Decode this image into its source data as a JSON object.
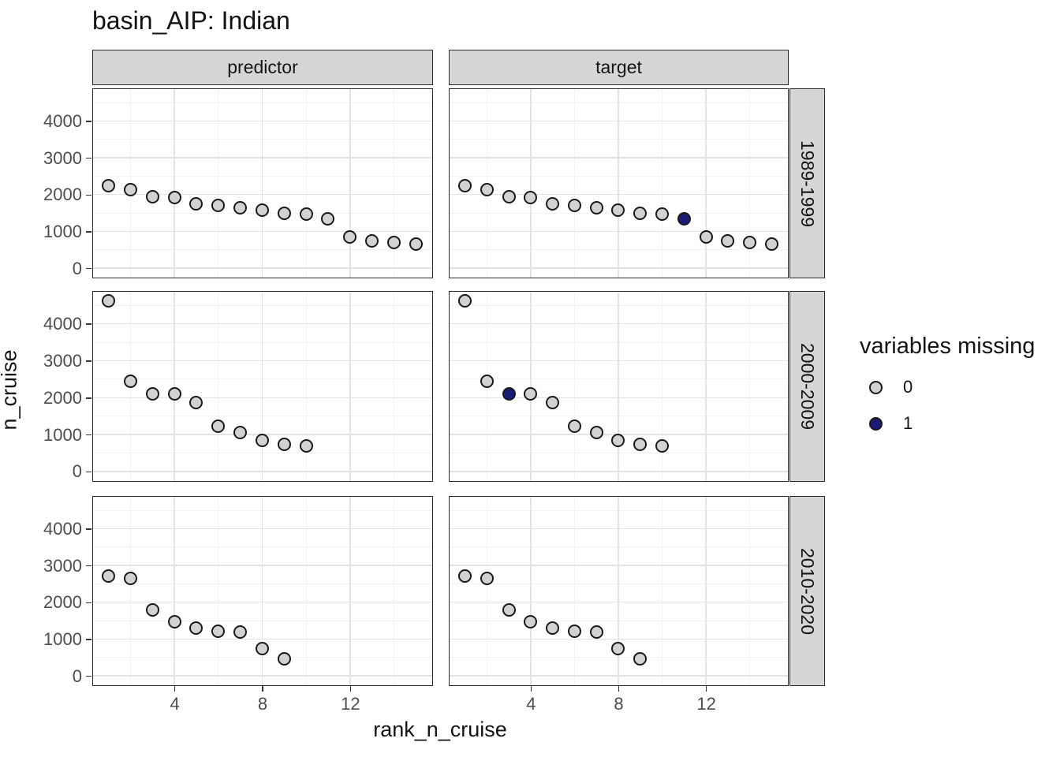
{
  "title": "basin_AIP: Indian",
  "chart_data": {
    "type": "scatter",
    "title": "basin_AIP: Indian",
    "xlabel": "rank_n_cruise",
    "ylabel": "n_cruise",
    "facet_cols": [
      "predictor",
      "target"
    ],
    "facet_rows": [
      "1989-1999",
      "2000-2009",
      "2010-2020"
    ],
    "x_ticks": [
      4,
      8,
      12
    ],
    "y_ticks": [
      4000,
      3000,
      2000,
      1000,
      0
    ],
    "x_minor": [
      2,
      6,
      10,
      14
    ],
    "y_minor": [
      500,
      1500,
      2500,
      3500,
      4500
    ],
    "x_domain": [
      0.3,
      15.7
    ],
    "y_domain": [
      -233,
      4868
    ],
    "grid": true,
    "rows": [
      {
        "facet_row": "1989-1999",
        "ranks": [
          1,
          2,
          3,
          4,
          5,
          6,
          7,
          8,
          9,
          10,
          11,
          12,
          13,
          14,
          15
        ],
        "values": [
          2250,
          2140,
          1930,
          1920,
          1750,
          1710,
          1650,
          1570,
          1500,
          1460,
          1330,
          840,
          730,
          690,
          660
        ],
        "target_missing_ranks": [
          11
        ]
      },
      {
        "facet_row": "2000-2009",
        "ranks": [
          1,
          2,
          3,
          4,
          5,
          6,
          7,
          8,
          9,
          10
        ],
        "values": [
          4630,
          2440,
          2110,
          2100,
          1860,
          1230,
          1050,
          840,
          740,
          700
        ],
        "target_missing_ranks": [
          3
        ]
      },
      {
        "facet_row": "2010-2020",
        "ranks": [
          1,
          2,
          3,
          4,
          5,
          6,
          7,
          8,
          9
        ],
        "values": [
          2710,
          2640,
          1800,
          1460,
          1300,
          1200,
          1180,
          730,
          470
        ],
        "target_missing_ranks": []
      }
    ],
    "legend": {
      "title": "variables missing",
      "items": [
        {
          "label": "0",
          "color": "#d2d2d2"
        },
        {
          "label": "1",
          "color": "#1a1a78"
        }
      ]
    },
    "colors": {
      "point_fill_0": "#d2d2d2",
      "point_fill_1": "#1a1a78",
      "point_stroke": "#1a1a1a",
      "strip_bg": "#d6d6d6",
      "grid_major": "#e3e3e3",
      "grid_minor": "#f2f2f2"
    }
  }
}
